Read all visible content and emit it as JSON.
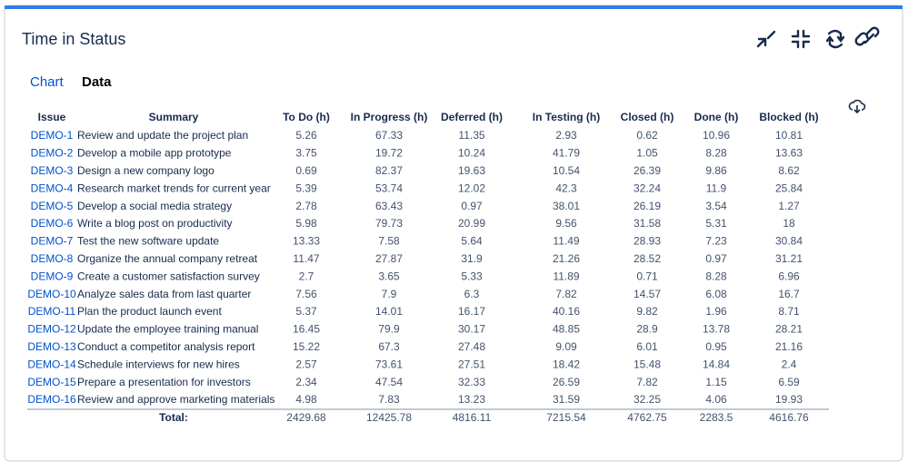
{
  "header": {
    "title": "Time in Status"
  },
  "tabs": [
    "Chart",
    "Data"
  ],
  "table": {
    "headers": [
      "Issue",
      "Summary",
      "To Do (h)",
      "In Progress (h)",
      "Deferred (h)",
      "In Testing (h)",
      "Closed (h)",
      "Done (h)",
      "Blocked (h)"
    ],
    "rows": [
      [
        "DEMO-1",
        "Review and update the project plan",
        5.26,
        67.33,
        11.35,
        2.93,
        0.62,
        10.96,
        10.81
      ],
      [
        "DEMO-2",
        "Develop a mobile app prototype",
        3.75,
        19.72,
        10.24,
        41.79,
        1.05,
        8.28,
        13.63
      ],
      [
        "DEMO-3",
        "Design a new company logo",
        0.69,
        82.37,
        19.63,
        10.54,
        26.39,
        9.86,
        8.62
      ],
      [
        "DEMO-4",
        "Research market trends for current year",
        5.39,
        53.74,
        12.02,
        42.3,
        32.24,
        11.9,
        25.84
      ],
      [
        "DEMO-5",
        "Develop a social media strategy",
        2.78,
        63.43,
        0.97,
        38.01,
        26.19,
        3.54,
        1.27
      ],
      [
        "DEMO-6",
        "Write a blog post on productivity",
        5.98,
        79.73,
        20.99,
        9.56,
        31.58,
        5.31,
        18
      ],
      [
        "DEMO-7",
        "Test the new software update",
        13.33,
        7.58,
        5.64,
        11.49,
        28.93,
        7.23,
        30.84
      ],
      [
        "DEMO-8",
        "Organize the annual company retreat",
        11.47,
        27.87,
        31.9,
        21.26,
        28.52,
        0.97,
        31.21
      ],
      [
        "DEMO-9",
        "Create a customer satisfaction survey",
        2.7,
        3.65,
        5.33,
        11.89,
        0.71,
        8.28,
        6.96
      ],
      [
        "DEMO-10",
        "Analyze sales data from last quarter",
        7.56,
        7.9,
        6.3,
        7.82,
        14.57,
        6.08,
        16.7
      ],
      [
        "DEMO-11",
        "Plan the product launch event",
        5.37,
        14.01,
        16.17,
        40.16,
        9.82,
        1.96,
        8.71
      ],
      [
        "DEMO-12",
        "Update the employee training manual",
        16.45,
        79.9,
        30.17,
        48.85,
        28.9,
        13.78,
        28.21
      ],
      [
        "DEMO-13",
        "Conduct a competitor analysis report",
        15.22,
        67.3,
        27.48,
        9.09,
        6.01,
        0.95,
        21.16
      ],
      [
        "DEMO-14",
        "Schedule interviews for new hires",
        2.57,
        73.61,
        27.51,
        18.42,
        15.48,
        14.84,
        2.4
      ],
      [
        "DEMO-15",
        "Prepare a presentation for investors",
        2.34,
        47.54,
        32.33,
        26.59,
        7.82,
        1.15,
        6.59
      ],
      [
        "DEMO-16",
        "Review and approve marketing materials",
        4.98,
        7.83,
        13.23,
        31.59,
        32.25,
        4.06,
        19.93
      ]
    ],
    "total": {
      "label": "Total:",
      "values": [
        2429.68,
        12425.78,
        4816.11,
        7215.54,
        4762.75,
        2283.5,
        4616.76
      ]
    }
  }
}
